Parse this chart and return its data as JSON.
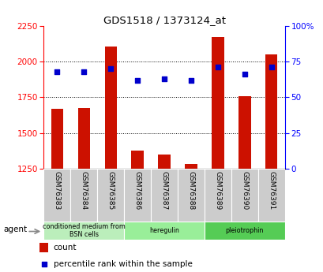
{
  "title": "GDS1518 / 1373124_at",
  "samples": [
    "GSM76383",
    "GSM76384",
    "GSM76385",
    "GSM76386",
    "GSM76387",
    "GSM76388",
    "GSM76389",
    "GSM76390",
    "GSM76391"
  ],
  "counts": [
    1670,
    1672,
    2105,
    1375,
    1350,
    1280,
    2170,
    1760,
    2050
  ],
  "percentiles": [
    68,
    68,
    70,
    62,
    63,
    62,
    71,
    66,
    71
  ],
  "ylim_left": [
    1250,
    2250
  ],
  "ylim_right": [
    0,
    100
  ],
  "yticks_left": [
    1250,
    1500,
    1750,
    2000,
    2250
  ],
  "yticks_right": [
    0,
    25,
    50,
    75,
    100
  ],
  "ytick_labels_right": [
    "0",
    "25",
    "50",
    "75",
    "100%"
  ],
  "groups": [
    {
      "label": "conditioned medium from\nBSN cells",
      "start": 0,
      "end": 3,
      "color": "#bbeebb"
    },
    {
      "label": "heregulin",
      "start": 3,
      "end": 6,
      "color": "#99ee99"
    },
    {
      "label": "pleiotrophin",
      "start": 6,
      "end": 9,
      "color": "#55cc55"
    }
  ],
  "bar_color": "#cc1100",
  "dot_color": "#0000cc",
  "bar_width": 0.45,
  "agent_label": "agent",
  "legend_count_label": "count",
  "legend_percentile_label": "percentile rank within the sample",
  "tick_area_color": "#cccccc",
  "plot_bg_color": "#ffffff"
}
